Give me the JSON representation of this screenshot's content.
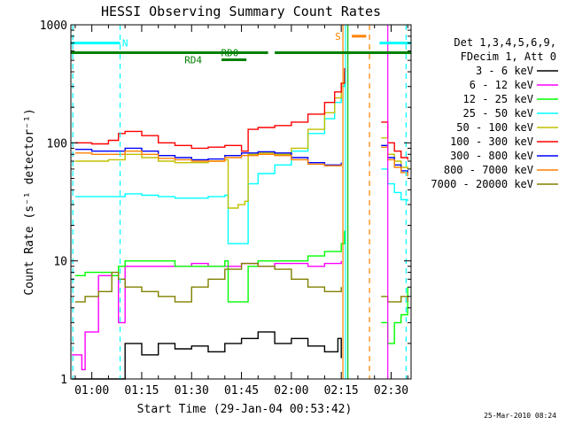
{
  "footer": {
    "stamp": "25-Mar-2010 08:24"
  },
  "chart_data": {
    "type": "line",
    "title": "HESSI Observing Summary Count Rates",
    "xlabel": "Start Time (29-Jan-04 00:53:42)",
    "ylabel": "Count Rate (s⁻¹ detector⁻¹)",
    "yscale": "log",
    "ylim": [
      1,
      1000
    ],
    "y_ticks": [
      1,
      10,
      100,
      1000
    ],
    "y_tick_labels": [
      "1",
      "10",
      "100",
      "1000"
    ],
    "x_range_min": [
      53.7,
      156.0
    ],
    "x_ticks_min": [
      60,
      75,
      90,
      105,
      120,
      135,
      150
    ],
    "x_tick_labels": [
      "01:00",
      "01:15",
      "01:30",
      "01:45",
      "02:00",
      "02:15",
      "02:30"
    ],
    "legend": {
      "placement": "right",
      "header": [
        "Det 1,3,4,5,6,9,",
        "FDecim 1, Att 0"
      ]
    },
    "state_bars": [
      {
        "label": "N",
        "color": "#00ffff",
        "level_counts": 700,
        "segments": [
          [
            53.7,
            68.5
          ],
          [
            146.5,
            156.0
          ]
        ],
        "label_at": 70.0
      },
      {
        "label": "S",
        "color": "#ff8000",
        "level_counts": 800,
        "segments": [
          [
            138.2,
            142.5
          ]
        ],
        "label_at": 134.0
      },
      {
        "label": "RD0",
        "color": "#008000",
        "level_counts": 580,
        "segments": [
          [
            53.7,
            113.0
          ],
          [
            115.0,
            156.0
          ]
        ],
        "label_at": 101.5
      },
      {
        "label": "RD4",
        "color": "#008000",
        "level_counts": 505,
        "segments": [
          [
            99.0,
            106.5
          ]
        ],
        "label_at": 90.5
      }
    ],
    "markers": [
      {
        "x": 54.3,
        "color": "#00ffff",
        "style": "dashed"
      },
      {
        "x": 68.5,
        "color": "#00ffff",
        "style": "dashed"
      },
      {
        "x": 135.5,
        "color": "#ff8000",
        "style": "solid"
      },
      {
        "x": 136.3,
        "color": "#00ffff",
        "style": "solid"
      },
      {
        "x": 137.0,
        "color": "#00c000",
        "style": "solid"
      },
      {
        "x": 143.5,
        "color": "#ff8000",
        "style": "dashed"
      },
      {
        "x": 149.0,
        "color": "#ff00ff",
        "style": "solid"
      },
      {
        "x": 154.5,
        "color": "#00ffff",
        "style": "dashed"
      }
    ],
    "series": [
      {
        "name": "3 - 6 keV",
        "color": "#000000",
        "x": [
          54,
          60,
          68,
          70,
          75,
          80,
          85,
          90,
          95,
          100,
          105,
          110,
          115,
          120,
          125,
          130,
          134,
          135
        ],
        "y": [
          1,
          1,
          1,
          2,
          1.6,
          2,
          1.8,
          1.9,
          1.7,
          2,
          2.2,
          2.5,
          2,
          2.2,
          1.9,
          1.7,
          2.2,
          1.5
        ]
      },
      {
        "name": "6 - 12 keV",
        "color": "#ff00ff",
        "x": [
          54,
          57,
          58,
          62,
          66,
          68,
          70,
          75,
          80,
          85,
          90,
          95,
          100,
          105,
          110,
          115,
          120,
          125,
          130,
          135
        ],
        "y": [
          1.6,
          1.2,
          2.5,
          7.5,
          7.5,
          3,
          9,
          9,
          9,
          9,
          9.5,
          9,
          9,
          9.5,
          9,
          9.5,
          9.5,
          9,
          9.5,
          10
        ]
      },
      {
        "name": "12 - 25 keV",
        "color": "#00ff00",
        "x": [
          55,
          58,
          62,
          66,
          68,
          70,
          75,
          80,
          85,
          90,
          95,
          100,
          101,
          104,
          106,
          107,
          110,
          115,
          120,
          125,
          130,
          135,
          136
        ],
        "y": [
          7.5,
          8,
          8,
          7.5,
          9,
          10,
          10,
          10,
          9,
          9,
          9,
          10,
          4.5,
          4.5,
          4.5,
          9,
          10,
          10,
          10,
          11,
          12,
          14,
          18
        ]
      },
      {
        "name": "25 - 50 keV",
        "color": "#00ffff",
        "x": [
          55,
          60,
          65,
          70,
          75,
          80,
          85,
          90,
          95,
          100,
          101,
          104,
          106,
          107,
          110,
          115,
          120,
          125,
          130,
          133,
          135,
          136
        ],
        "y": [
          35,
          35,
          35,
          37,
          36,
          35,
          34,
          34,
          35,
          36,
          14,
          14,
          14,
          45,
          55,
          65,
          85,
          120,
          160,
          220,
          300,
          380
        ]
      },
      {
        "name": "50 - 100 keV",
        "color": "#c0c000",
        "x": [
          55,
          60,
          65,
          70,
          75,
          80,
          85,
          90,
          95,
          100,
          101,
          104,
          106,
          107,
          110,
          115,
          120,
          125,
          130,
          133,
          135,
          136
        ],
        "y": [
          70,
          70,
          72,
          80,
          75,
          70,
          68,
          68,
          70,
          72,
          28,
          30,
          32,
          80,
          82,
          80,
          90,
          130,
          180,
          240,
          320,
          400
        ]
      },
      {
        "name": "100 - 300 keV",
        "color": "#ff0000",
        "x": [
          55,
          60,
          65,
          68,
          70,
          75,
          80,
          85,
          90,
          95,
          100,
          105,
          107,
          110,
          115,
          120,
          125,
          130,
          133,
          135,
          136
        ],
        "y": [
          100,
          98,
          105,
          120,
          125,
          115,
          100,
          95,
          90,
          92,
          95,
          85,
          130,
          135,
          140,
          150,
          175,
          220,
          270,
          320,
          430
        ]
      },
      {
        "name": "300 - 800 keV",
        "color": "#0000ff",
        "x": [
          55,
          60,
          65,
          70,
          75,
          80,
          85,
          90,
          95,
          100,
          105,
          110,
          115,
          120,
          125,
          130,
          135
        ],
        "y": [
          88,
          85,
          85,
          90,
          85,
          78,
          75,
          72,
          73,
          78,
          82,
          84,
          82,
          75,
          68,
          65,
          68
        ]
      },
      {
        "name": "800 - 7000 keV",
        "color": "#ff8000",
        "x": [
          55,
          60,
          65,
          70,
          75,
          80,
          85,
          90,
          95,
          100,
          105,
          110,
          115,
          120,
          125,
          130,
          135
        ],
        "y": [
          82,
          80,
          80,
          85,
          80,
          74,
          72,
          70,
          70,
          75,
          78,
          80,
          78,
          72,
          66,
          64,
          66
        ]
      },
      {
        "name": "7000 - 20000 keV",
        "color": "#808000",
        "x": [
          55,
          58,
          62,
          66,
          68,
          70,
          75,
          80,
          85,
          90,
          95,
          100,
          105,
          110,
          115,
          120,
          125,
          130,
          135
        ],
        "y": [
          4.5,
          5,
          5.5,
          8,
          7,
          6,
          5.5,
          5,
          4.5,
          6,
          7,
          8.5,
          9.5,
          9,
          8.5,
          7,
          6,
          5.5,
          6
        ]
      }
    ],
    "after_gap": {
      "x": [
        147,
        149,
        151,
        153,
        155
      ],
      "series": {
        "100 - 300 keV": [
          150,
          100,
          85,
          75,
          72
        ],
        "50 - 100 keV": [
          110,
          80,
          70,
          62,
          60
        ],
        "300 - 800 keV": [
          95,
          75,
          65,
          58,
          55
        ],
        "800 - 7000 keV": [
          92,
          72,
          62,
          56,
          52
        ],
        "25 - 50 keV": [
          60,
          45,
          38,
          33,
          32
        ],
        "12 - 25 keV": [
          3,
          2,
          3,
          3.5,
          6
        ],
        "7000 - 20000 keV": [
          5,
          4.5,
          4.5,
          5,
          4.5
        ]
      }
    }
  }
}
